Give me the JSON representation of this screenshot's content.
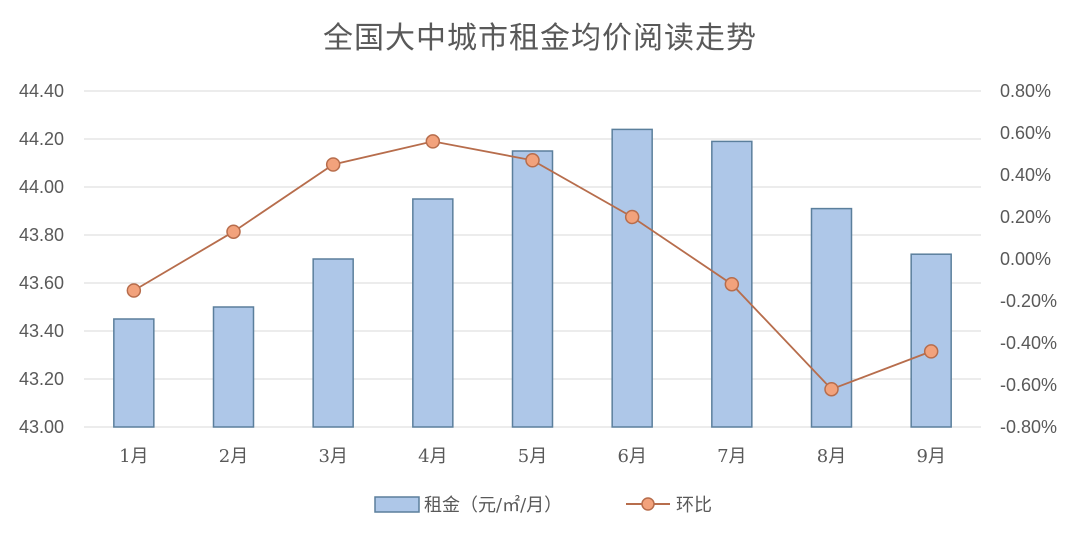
{
  "chart_data": {
    "type": "bar",
    "title": "全国大中城市租金均价阅读走势",
    "categories": [
      "1月",
      "2月",
      "3月",
      "4月",
      "5月",
      "6月",
      "7月",
      "8月",
      "9月"
    ],
    "series": [
      {
        "name": "租金（元/㎡/月）",
        "type": "bar",
        "axis": "left",
        "values": [
          43.45,
          43.5,
          43.7,
          43.95,
          44.15,
          44.24,
          44.19,
          43.91,
          43.72
        ]
      },
      {
        "name": "环比",
        "type": "line",
        "axis": "right",
        "values": [
          -0.0015,
          0.0013,
          0.0045,
          0.0056,
          0.0047,
          0.002,
          -0.0012,
          -0.0062,
          -0.0044
        ]
      }
    ],
    "y_left": {
      "ylim": [
        43.0,
        44.4
      ],
      "ticks": [
        "43.00",
        "43.20",
        "43.40",
        "43.60",
        "43.80",
        "44.00",
        "44.20",
        "44.40"
      ]
    },
    "y_right": {
      "ylim": [
        -0.008,
        0.008
      ],
      "ticks": [
        "-0.80%",
        "-0.60%",
        "-0.40%",
        "-0.20%",
        "0.00%",
        "0.20%",
        "0.40%",
        "0.60%",
        "0.80%"
      ]
    },
    "grid": true,
    "legend_position": "bottom",
    "colors": {
      "bar_fill": "#aec7e8",
      "bar_stroke": "#5b7f9c",
      "line": "#b76d4c",
      "marker_fill": "#f2a27c",
      "marker_stroke": "#b76d4c",
      "grid": "#d9d9d9",
      "text": "#595959"
    }
  }
}
